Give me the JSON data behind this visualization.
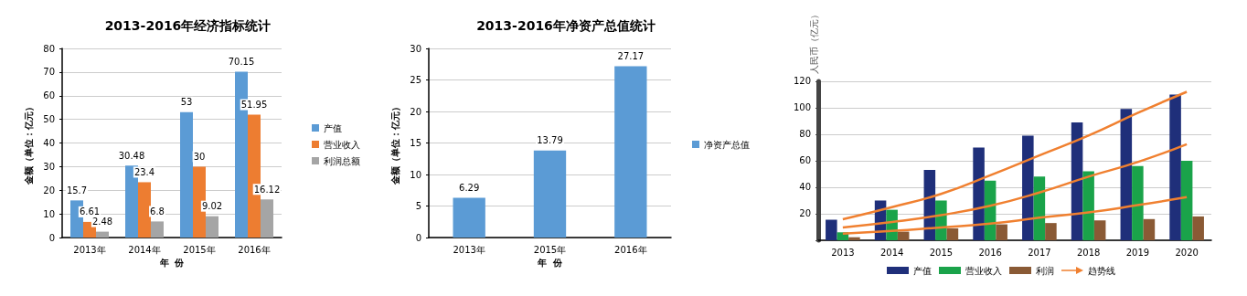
{
  "chart_data": [
    {
      "type": "bar",
      "title": "2013-2016年经济指标统计",
      "xlabel": "年  份",
      "ylabel": "金额（单位：亿元）",
      "categories": [
        "2013年",
        "2014年",
        "2015年",
        "2016年"
      ],
      "series": [
        {
          "name": "产值",
          "color": "#5b9bd5",
          "values": [
            15.7,
            30.48,
            53,
            70.15
          ]
        },
        {
          "name": "营业收入",
          "color": "#ed7d31",
          "values": [
            6.61,
            23.4,
            30,
            51.95
          ]
        },
        {
          "name": "利润总额",
          "color": "#a5a5a5",
          "values": [
            2.48,
            6.8,
            9.02,
            16.12
          ]
        }
      ],
      "ylim": [
        0,
        80
      ],
      "yticks": [
        0,
        10,
        20,
        30,
        40,
        50,
        60,
        70,
        80
      ],
      "grid": "y",
      "legend": "right",
      "data_labels": true
    },
    {
      "type": "bar",
      "title": "2013-2016年净资产总值统计",
      "xlabel": "年  份",
      "ylabel": "金额（单位：亿元）",
      "categories": [
        "2013年",
        "2015年",
        "2016年"
      ],
      "series": [
        {
          "name": "净资产总值",
          "color": "#5b9bd5",
          "values": [
            6.29,
            13.79,
            27.17
          ]
        }
      ],
      "ylim": [
        0,
        30
      ],
      "yticks": [
        0,
        5,
        10,
        15,
        20,
        25,
        30
      ],
      "grid": "y",
      "legend": "right",
      "data_labels": true
    },
    {
      "type": "bar",
      "ylabel": "人民币（亿元）",
      "categories": [
        "2013",
        "2014",
        "2015",
        "2016",
        "2017",
        "2018",
        "2019",
        "2020"
      ],
      "series": [
        {
          "name": "产值",
          "color": "#1f2f7a",
          "values": [
            15.5,
            30,
            53,
            70,
            79,
            89,
            99,
            110
          ]
        },
        {
          "name": "营业收入",
          "color": "#1aa34a",
          "values": [
            6,
            23,
            30,
            45,
            48,
            52,
            56,
            60
          ]
        },
        {
          "name": "利润",
          "color": "#8a5a35",
          "values": [
            2.3,
            6.5,
            9,
            12,
            13,
            15,
            16,
            18
          ]
        },
        {
          "name": "趋势线",
          "type": "line",
          "marker": "none",
          "color": "#f08030",
          "values": [
            15.8,
            25,
            35,
            49,
            64,
            79,
            96,
            112
          ]
        },
        {
          "type": "line",
          "marker": "none",
          "color": "#f08030",
          "values": [
            9.7,
            13.8,
            19,
            26,
            36,
            48,
            59,
            72.5
          ]
        },
        {
          "type": "line",
          "marker": "none",
          "color": "#f08030",
          "values": [
            5,
            7,
            9.7,
            12.5,
            17,
            21,
            26.5,
            32.5
          ]
        }
      ],
      "ylim": [
        0,
        120
      ],
      "yticks": [
        {
          "value": 0,
          "label": null
        },
        20,
        40,
        60,
        80,
        100,
        120
      ],
      "grid": "y",
      "legend": "bottom"
    }
  ]
}
